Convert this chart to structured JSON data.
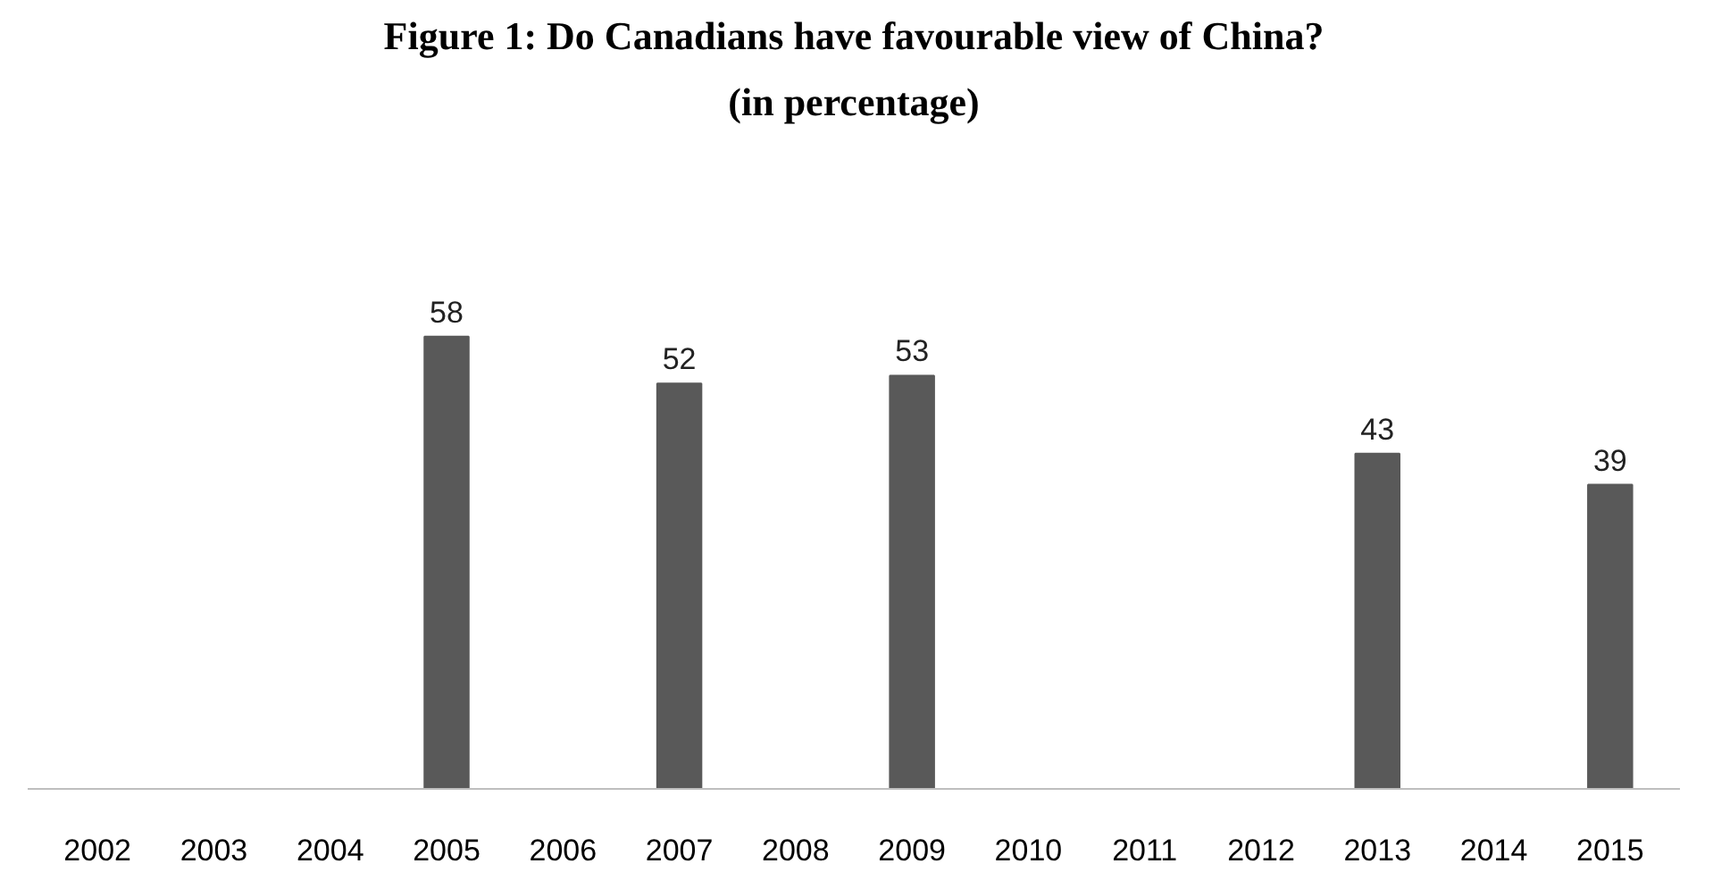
{
  "chart_data": {
    "type": "bar",
    "title": "Figure 1: Do Canadians have favourable view of China?",
    "subtitle": "(in percentage)",
    "categories": [
      "2002",
      "2003",
      "2004",
      "2005",
      "2006",
      "2007",
      "2008",
      "2009",
      "2010",
      "2011",
      "2012",
      "2013",
      "2014",
      "2015"
    ],
    "values": [
      null,
      null,
      null,
      58,
      null,
      52,
      null,
      53,
      null,
      null,
      null,
      43,
      null,
      39
    ],
    "color": "#595959",
    "data_labels": true
  }
}
